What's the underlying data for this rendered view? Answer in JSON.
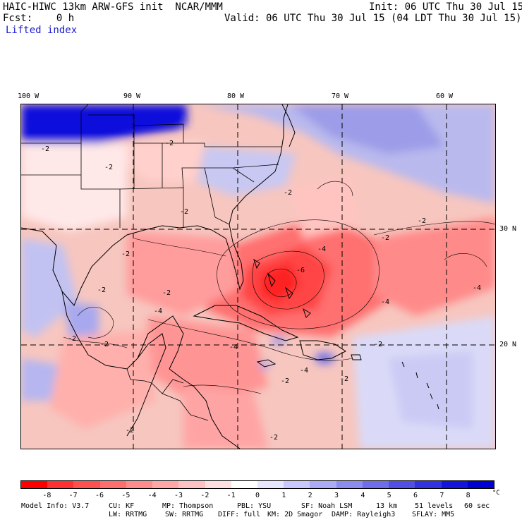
{
  "header": {
    "model_title": "HAIC-HIWC 13km ARW-GFS init  NCAR/MMM",
    "init": "Init: 06 UTC Thu 30 Jul 15",
    "fcst": "Fcst:    0 h",
    "valid": "Valid: 06 UTC Thu 30 Jul 15 (04 LDT Thu 30 Jul 15)",
    "field": "Lifted index"
  },
  "map": {
    "longitude_labels": [
      "100 W",
      "90 W",
      "80 W",
      "70 W",
      "60 W"
    ],
    "latitude_labels": [
      "30 N",
      "20 N"
    ],
    "contour_label": "-2",
    "contour_labels_extra": [
      "-4",
      "-6"
    ]
  },
  "colorbar": {
    "colors": [
      "#ff0000",
      "#ff3030",
      "#ff5050",
      "#ff6e6e",
      "#ff8c8c",
      "#ffa6a6",
      "#ffc2c2",
      "#ffe0e0",
      "#ffffff",
      "#e6e6ff",
      "#c8c8ff",
      "#aaaaf5",
      "#8c8cf0",
      "#6e6eeb",
      "#5050e6",
      "#3232e0",
      "#1414dc",
      "#0000d2"
    ],
    "labels": [
      "-8",
      "-7",
      "-6",
      "-5",
      "-4",
      "-3",
      "-2",
      "-1",
      "0",
      "1",
      "2",
      "3",
      "4",
      "5",
      "6",
      "7",
      "8"
    ],
    "unit": "°C"
  },
  "footer": {
    "line1": [
      "Model Info: V3.7",
      "CU: KF",
      "MP: Thompson",
      "PBL: YSU",
      "SF: Noah LSM",
      "13 km",
      "51 levels",
      "60 sec"
    ],
    "line2": [
      "LW: RRTMG",
      "SW: RRTMG",
      "DIFF: full",
      "KM: 2D Smagor",
      "DAMP: Rayleigh3",
      "SFLAY: MM5"
    ]
  }
}
